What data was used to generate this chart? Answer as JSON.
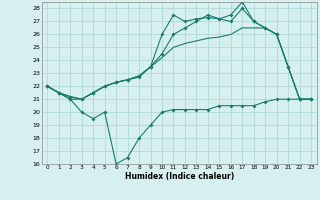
{
  "xlabel": "Humidex (Indice chaleur)",
  "background_color": "#d6f0f0",
  "grid_color": "#aad4d4",
  "line_color": "#1a7a6e",
  "xlim_min": -0.5,
  "xlim_max": 23.5,
  "ylim_min": 16,
  "ylim_max": 28.5,
  "yticks": [
    16,
    17,
    18,
    19,
    20,
    21,
    22,
    23,
    24,
    25,
    26,
    27,
    28
  ],
  "xticks": [
    0,
    1,
    2,
    3,
    4,
    5,
    6,
    7,
    8,
    9,
    10,
    11,
    12,
    13,
    14,
    15,
    16,
    17,
    18,
    19,
    20,
    21,
    22,
    23
  ],
  "s1_x": [
    0,
    1,
    2,
    3,
    4,
    5,
    6,
    7,
    8,
    9,
    10,
    11,
    12,
    13,
    14,
    15,
    16,
    17,
    18,
    19,
    20,
    21,
    22,
    23
  ],
  "s1_y": [
    22.0,
    21.5,
    21.0,
    21.0,
    21.5,
    22.0,
    22.3,
    22.5,
    22.7,
    23.5,
    26.0,
    27.5,
    27.0,
    27.2,
    27.3,
    27.2,
    27.5,
    28.5,
    27.0,
    26.5,
    26.0,
    23.5,
    21.0,
    21.0
  ],
  "s2_x": [
    0,
    1,
    2,
    3,
    4,
    5,
    6,
    7,
    8,
    9,
    10,
    11,
    12,
    13,
    14,
    15,
    16,
    17,
    18,
    19,
    20,
    21,
    22,
    23
  ],
  "s2_y": [
    22.0,
    21.5,
    21.2,
    21.0,
    21.5,
    22.0,
    22.3,
    22.5,
    22.8,
    23.5,
    24.2,
    25.0,
    25.3,
    25.5,
    25.7,
    25.8,
    26.0,
    26.5,
    26.5,
    26.5,
    26.0,
    23.5,
    21.0,
    21.0
  ],
  "s3_x": [
    0,
    1,
    2,
    3,
    4,
    5,
    6,
    7,
    8,
    9,
    10,
    11,
    12,
    13,
    14,
    15,
    16,
    17,
    18,
    19,
    20,
    21,
    22,
    23
  ],
  "s3_y": [
    22.0,
    21.5,
    21.2,
    21.0,
    21.5,
    22.0,
    22.3,
    22.5,
    22.8,
    23.5,
    24.5,
    26.0,
    26.5,
    27.0,
    27.5,
    27.2,
    27.0,
    28.0,
    27.0,
    26.5,
    26.0,
    23.5,
    21.0,
    21.0
  ],
  "s4_x": [
    0,
    1,
    2,
    3,
    4,
    5,
    6,
    7,
    8,
    9,
    10,
    11,
    12,
    13,
    14,
    15,
    16,
    17,
    18,
    19,
    20,
    21,
    22,
    23
  ],
  "s4_y": [
    22.0,
    21.5,
    21.0,
    20.0,
    19.5,
    20.0,
    16.0,
    16.5,
    18.0,
    19.0,
    20.0,
    20.2,
    20.2,
    20.2,
    20.2,
    20.5,
    20.5,
    20.5,
    20.5,
    20.8,
    21.0,
    21.0,
    21.0,
    21.0
  ]
}
